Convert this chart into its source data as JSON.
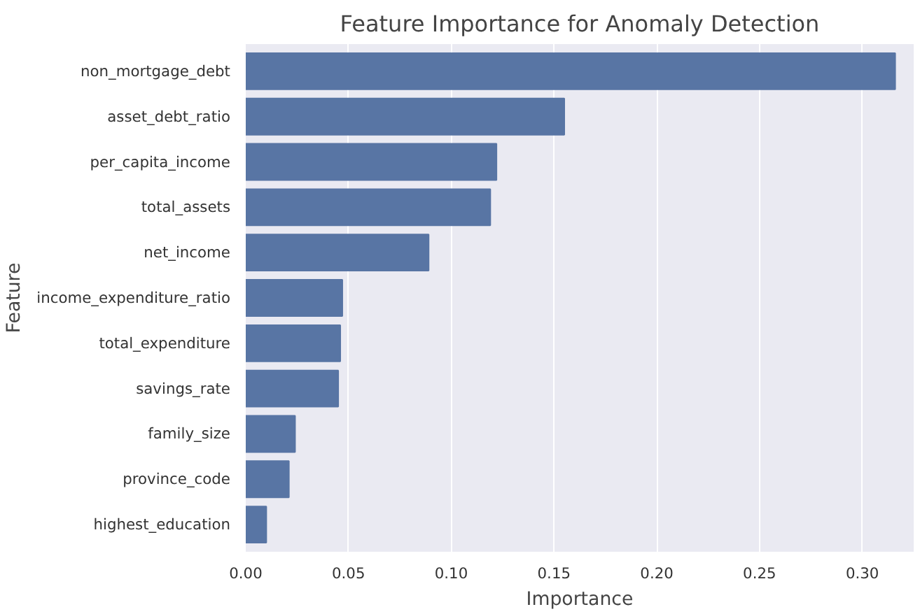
{
  "chart_data": {
    "type": "bar",
    "orientation": "horizontal",
    "title": "Feature Importance for Anomaly Detection",
    "xlabel": "Importance",
    "ylabel": "Feature",
    "categories": [
      "non_mortgage_debt",
      "asset_debt_ratio",
      "per_capita_income",
      "total_assets",
      "net_income",
      "income_expenditure_ratio",
      "total_expenditure",
      "savings_rate",
      "family_size",
      "province_code",
      "highest_education"
    ],
    "values": [
      0.316,
      0.155,
      0.122,
      0.119,
      0.089,
      0.047,
      0.046,
      0.045,
      0.024,
      0.021,
      0.01
    ],
    "color": "#5875a4",
    "xlim": [
      0,
      0.325
    ],
    "xticks": [
      {
        "value": 0,
        "label": "0.00"
      },
      {
        "value": 0.05,
        "label": "0.05"
      },
      {
        "value": 0.1,
        "label": "0.10"
      },
      {
        "value": 0.15,
        "label": "0.15"
      },
      {
        "value": 0.2,
        "label": "0.20"
      },
      {
        "value": 0.25,
        "label": "0.25"
      },
      {
        "value": 0.3,
        "label": "0.30"
      }
    ],
    "grid": "x"
  }
}
